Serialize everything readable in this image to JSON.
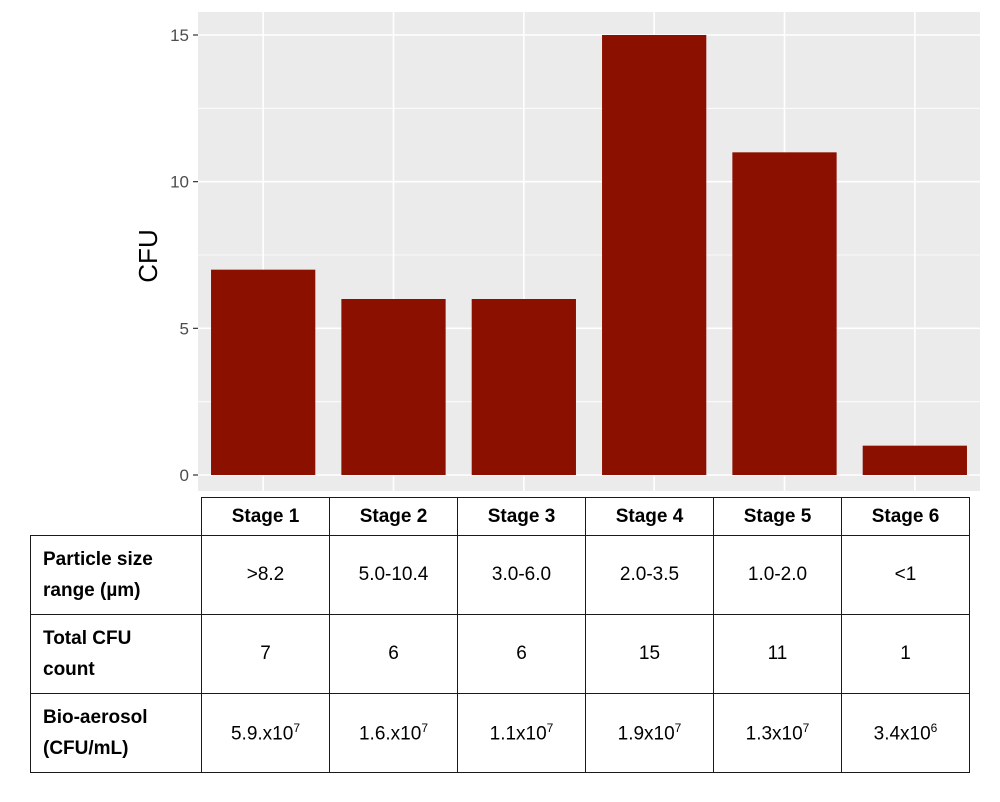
{
  "chart_data": {
    "type": "bar",
    "categories": [
      "Stage 1",
      "Stage 2",
      "Stage 3",
      "Stage 4",
      "Stage 5",
      "Stage 6"
    ],
    "values": [
      7,
      6,
      6,
      15,
      11,
      1
    ],
    "ylabel": "CFU",
    "ylim": [
      0,
      15
    ],
    "yticks": [
      0,
      5,
      10,
      15
    ],
    "bar_color": "#8b1000",
    "panel_color": "#ebebeb",
    "grid": true
  },
  "table": {
    "headers": [
      "Stage 1",
      "Stage 2",
      "Stage 3",
      "Stage 4",
      "Stage 5",
      "Stage 6"
    ],
    "rows": [
      {
        "label_lines": [
          "Particle size",
          "range (µm)"
        ],
        "cells": [
          {
            "text": ">8.2"
          },
          {
            "text": "5.0-10.4"
          },
          {
            "text": "3.0-6.0"
          },
          {
            "text": "2.0-3.5"
          },
          {
            "text": "1.0-2.0"
          },
          {
            "text": "<1"
          }
        ]
      },
      {
        "label_lines": [
          "Total CFU",
          "count"
        ],
        "cells": [
          {
            "text": "7"
          },
          {
            "text": "6"
          },
          {
            "text": "6"
          },
          {
            "text": "15"
          },
          {
            "text": "11"
          },
          {
            "text": "1"
          }
        ]
      },
      {
        "label_lines": [
          "Bio-aerosol",
          "(CFU/mL)"
        ],
        "cells": [
          {
            "text": "5.9.x10",
            "sup": "7"
          },
          {
            "text": "1.6.x10",
            "sup": "7"
          },
          {
            "text": "1.1x10",
            "sup": "7"
          },
          {
            "text": "1.9x10",
            "sup": "7"
          },
          {
            "text": "1.3x10",
            "sup": "7"
          },
          {
            "text": "3.4x10",
            "sup": "6"
          }
        ]
      }
    ]
  }
}
